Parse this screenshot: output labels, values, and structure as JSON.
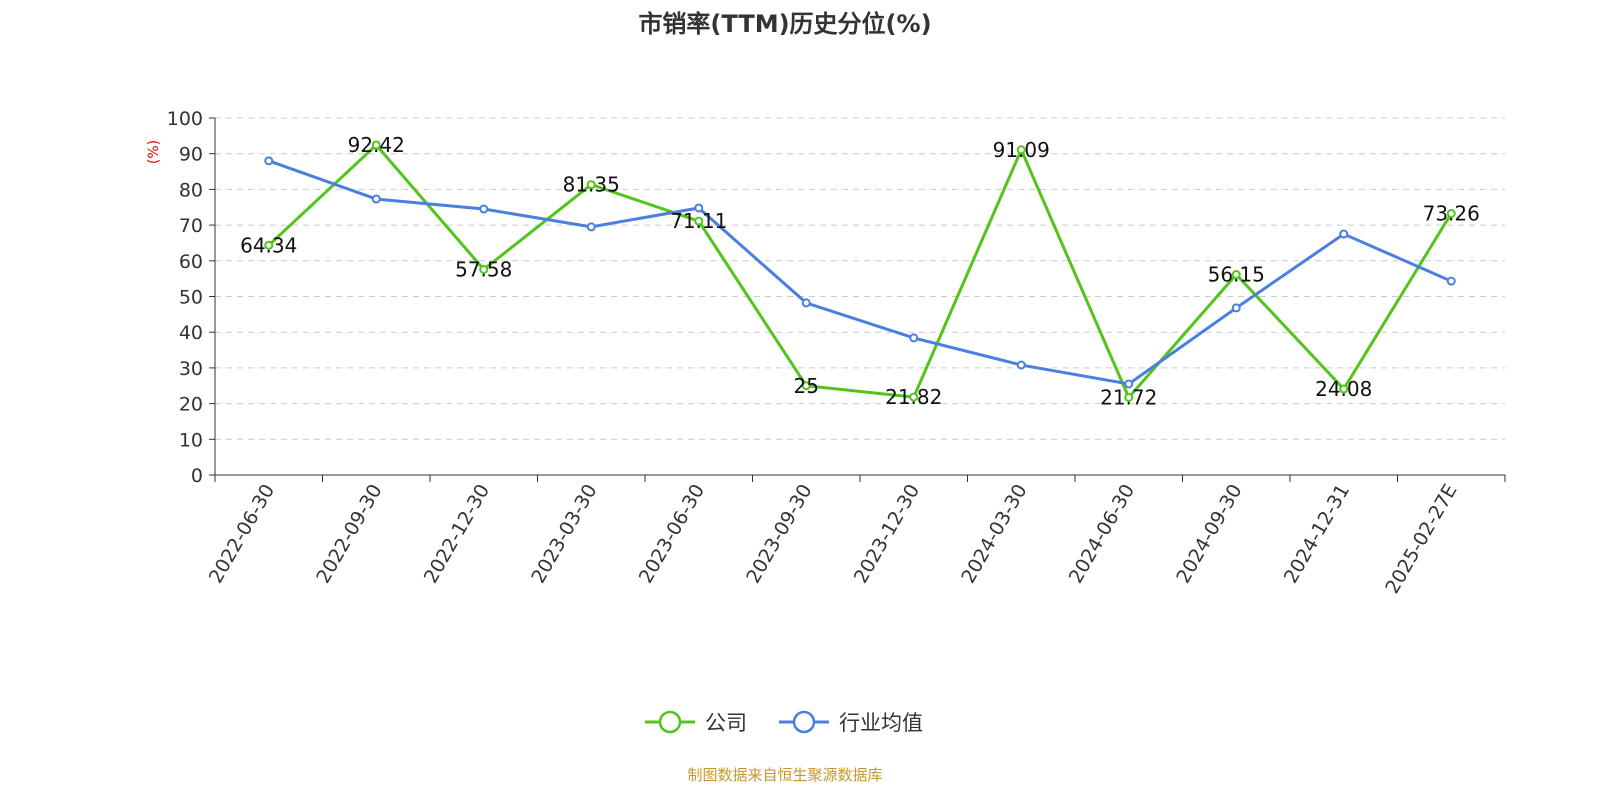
{
  "chart_data": {
    "type": "line",
    "title": "市销率(TTM)历史分位(%)",
    "ylabel": "(%)",
    "xlabel": "",
    "ylim": [
      0,
      100
    ],
    "yticks": [
      0,
      10,
      20,
      30,
      40,
      50,
      60,
      70,
      80,
      90,
      100
    ],
    "grid": true,
    "legend_position": "bottom",
    "categories": [
      "2022-06-30",
      "2022-09-30",
      "2022-12-30",
      "2023-03-30",
      "2023-06-30",
      "2023-09-30",
      "2023-12-30",
      "2024-03-30",
      "2024-06-30",
      "2024-09-30",
      "2024-12-31",
      "2025-02-27E"
    ],
    "series": [
      {
        "name": "公司",
        "color": "#52c41a",
        "values": [
          64.34,
          92.42,
          57.58,
          81.35,
          71.11,
          25,
          21.82,
          91.09,
          21.72,
          56.15,
          24.08,
          73.26
        ],
        "labels": [
          "64.34",
          "92.42",
          "57.58",
          "81.35",
          "71.11",
          "25",
          "21.82",
          "91.09",
          "21.72",
          "56.15",
          "24.08",
          "73.26"
        ]
      },
      {
        "name": "行业均值",
        "color": "#4a7fe0",
        "values": [
          88.0,
          77.3,
          74.5,
          69.5,
          74.8,
          48.2,
          38.4,
          30.8,
          25.5,
          46.8,
          67.5,
          54.3
        ]
      }
    ],
    "source": "制图数据来自恒生聚源数据库"
  }
}
